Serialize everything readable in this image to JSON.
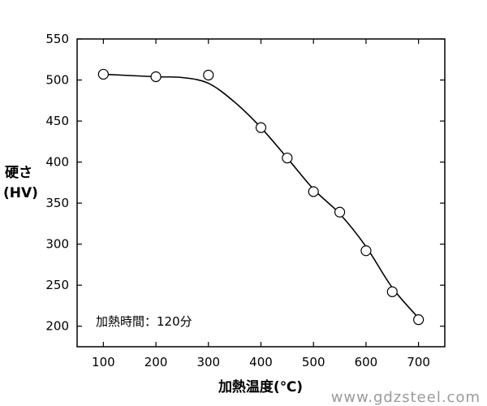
{
  "chart_data": {
    "type": "scatter",
    "ylabel_line1": "硬さ",
    "ylabel_line2": "(HV)",
    "xlabel": "加熱温度(℃)",
    "annotation": "加熱時間：120分",
    "xlim": [
      50,
      750
    ],
    "ylim": [
      175,
      550
    ],
    "x_ticks": [
      100,
      200,
      300,
      400,
      500,
      600,
      700
    ],
    "y_ticks": [
      200,
      250,
      300,
      350,
      400,
      450,
      500,
      550
    ],
    "points": [
      {
        "x": 100,
        "y": 507
      },
      {
        "x": 200,
        "y": 504
      },
      {
        "x": 300,
        "y": 506
      },
      {
        "x": 400,
        "y": 442
      },
      {
        "x": 450,
        "y": 405
      },
      {
        "x": 500,
        "y": 364
      },
      {
        "x": 550,
        "y": 339
      },
      {
        "x": 600,
        "y": 292
      },
      {
        "x": 650,
        "y": 242
      },
      {
        "x": 700,
        "y": 208
      }
    ],
    "curve": [
      {
        "x": 100,
        "y": 507
      },
      {
        "x": 200,
        "y": 504
      },
      {
        "x": 250,
        "y": 503
      },
      {
        "x": 300,
        "y": 496
      },
      {
        "x": 350,
        "y": 473
      },
      {
        "x": 400,
        "y": 442
      },
      {
        "x": 450,
        "y": 405
      },
      {
        "x": 500,
        "y": 367
      },
      {
        "x": 550,
        "y": 337
      },
      {
        "x": 600,
        "y": 297
      },
      {
        "x": 650,
        "y": 247
      },
      {
        "x": 700,
        "y": 210
      }
    ],
    "grid": false
  },
  "watermark": "www.gdzsteel.com"
}
